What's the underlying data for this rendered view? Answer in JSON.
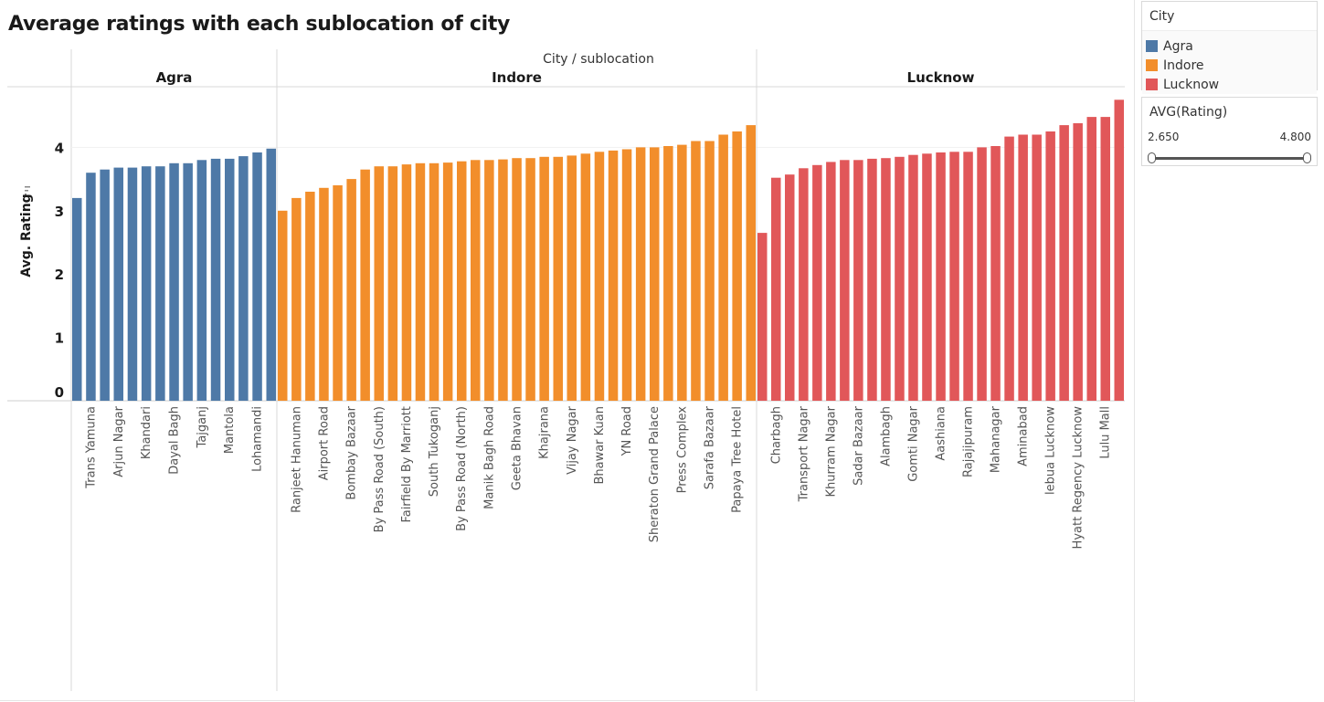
{
  "title": "Average ratings with each sublocation of city",
  "legend": {
    "title": "City",
    "items": [
      {
        "label": "Agra",
        "color": "#4e79a7"
      },
      {
        "label": "Indore",
        "color": "#f28e2b"
      },
      {
        "label": "Lucknow",
        "color": "#e15759"
      }
    ]
  },
  "filter": {
    "title": "AVG(Rating)",
    "min": "2.650",
    "max": "4.800"
  },
  "chart_data": {
    "type": "bar",
    "title": "Average ratings with each sublocation of city",
    "column_header": "City / sublocation",
    "ylabel": "Avg. Rating",
    "ylim": [
      0,
      4.8
    ],
    "yticks": [
      "0",
      "1",
      "2",
      "3",
      "4"
    ],
    "grid": false,
    "legend_position": "top-right",
    "groups": [
      {
        "name": "Agra",
        "color": "#4e79a7",
        "bars": [
          {
            "label": "",
            "value": 3.2
          },
          {
            "label": "Trans Yamuna",
            "value": 3.6
          },
          {
            "label": "",
            "value": 3.65
          },
          {
            "label": "Arjun Nagar",
            "value": 3.68
          },
          {
            "label": "",
            "value": 3.68
          },
          {
            "label": "Khandari",
            "value": 3.7
          },
          {
            "label": "",
            "value": 3.7
          },
          {
            "label": "Dayal Bagh",
            "value": 3.75
          },
          {
            "label": "",
            "value": 3.75
          },
          {
            "label": "Tajganj",
            "value": 3.8
          },
          {
            "label": "",
            "value": 3.82
          },
          {
            "label": "Mantola",
            "value": 3.82
          },
          {
            "label": "",
            "value": 3.86
          },
          {
            "label": "Lohamandi",
            "value": 3.92
          },
          {
            "label": "",
            "value": 3.98
          }
        ]
      },
      {
        "name": "Indore",
        "color": "#f28e2b",
        "bars": [
          {
            "label": "",
            "value": 3.0
          },
          {
            "label": "Ranjeet Hanuman",
            "value": 3.2
          },
          {
            "label": "",
            "value": 3.3
          },
          {
            "label": "Airport Road",
            "value": 3.36
          },
          {
            "label": "",
            "value": 3.4
          },
          {
            "label": "Bombay Bazaar",
            "value": 3.5
          },
          {
            "label": "",
            "value": 3.65
          },
          {
            "label": "By Pass Road (South)",
            "value": 3.7
          },
          {
            "label": "",
            "value": 3.7
          },
          {
            "label": "Fairfield By Marriott",
            "value": 3.73
          },
          {
            "label": "",
            "value": 3.75
          },
          {
            "label": "South Tukoganj",
            "value": 3.75
          },
          {
            "label": "",
            "value": 3.76
          },
          {
            "label": "By Pass Road (North)",
            "value": 3.78
          },
          {
            "label": "",
            "value": 3.8
          },
          {
            "label": "Manik Bagh Road",
            "value": 3.8
          },
          {
            "label": "",
            "value": 3.81
          },
          {
            "label": "Geeta Bhavan",
            "value": 3.83
          },
          {
            "label": "",
            "value": 3.83
          },
          {
            "label": "Khajrana",
            "value": 3.85
          },
          {
            "label": "",
            "value": 3.85
          },
          {
            "label": "Vijay Nagar",
            "value": 3.87
          },
          {
            "label": "",
            "value": 3.9
          },
          {
            "label": "Bhawar Kuan",
            "value": 3.93
          },
          {
            "label": "",
            "value": 3.95
          },
          {
            "label": "YN Road",
            "value": 3.97
          },
          {
            "label": "",
            "value": 4.0
          },
          {
            "label": "Sheraton Grand Palace",
            "value": 4.0
          },
          {
            "label": "",
            "value": 4.02
          },
          {
            "label": "Press Complex",
            "value": 4.04
          },
          {
            "label": "",
            "value": 4.1
          },
          {
            "label": "Sarafa Bazaar",
            "value": 4.1
          },
          {
            "label": "",
            "value": 4.2
          },
          {
            "label": "Papaya Tree Hotel",
            "value": 4.25
          },
          {
            "label": "",
            "value": 4.35
          }
        ]
      },
      {
        "name": "Lucknow",
        "color": "#e15759",
        "bars": [
          {
            "label": "",
            "value": 2.65
          },
          {
            "label": "Charbagh",
            "value": 3.52
          },
          {
            "label": "",
            "value": 3.57
          },
          {
            "label": "Transport Nagar",
            "value": 3.67
          },
          {
            "label": "",
            "value": 3.72
          },
          {
            "label": "Khurram Nagar",
            "value": 3.77
          },
          {
            "label": "",
            "value": 3.8
          },
          {
            "label": "Sadar Bazaar",
            "value": 3.8
          },
          {
            "label": "",
            "value": 3.82
          },
          {
            "label": "Alambagh",
            "value": 3.83
          },
          {
            "label": "",
            "value": 3.85
          },
          {
            "label": "Gomti Nagar",
            "value": 3.88
          },
          {
            "label": "",
            "value": 3.9
          },
          {
            "label": "Aashiana",
            "value": 3.92
          },
          {
            "label": "",
            "value": 3.93
          },
          {
            "label": "Rajajipuram",
            "value": 3.93
          },
          {
            "label": "",
            "value": 4.0
          },
          {
            "label": "Mahanagar",
            "value": 4.02
          },
          {
            "label": "",
            "value": 4.17
          },
          {
            "label": "Aminabad",
            "value": 4.2
          },
          {
            "label": "",
            "value": 4.2
          },
          {
            "label": "lebua Lucknow",
            "value": 4.25
          },
          {
            "label": "",
            "value": 4.35
          },
          {
            "label": "Hyatt Regency Lucknow",
            "value": 4.38
          },
          {
            "label": "",
            "value": 4.48
          },
          {
            "label": "Lulu Mall",
            "value": 4.48
          },
          {
            "label": "",
            "value": 4.75
          }
        ]
      }
    ]
  }
}
